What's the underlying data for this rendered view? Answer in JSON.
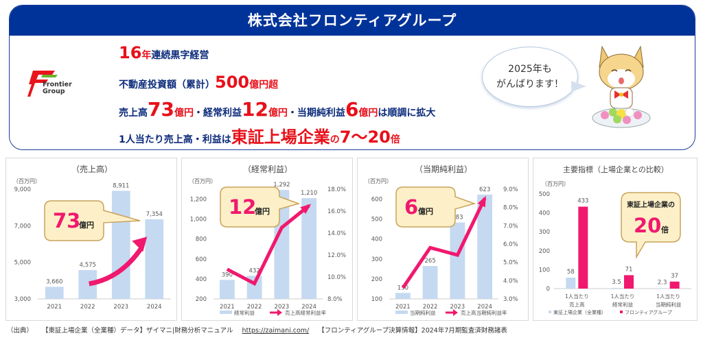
{
  "header": {
    "title": "株式会社フロンティアグループ",
    "logo_text_line1": "Frontier",
    "logo_text_line2": "Group"
  },
  "highlights": [
    {
      "parts": [
        {
          "t": "16",
          "c": "red big"
        },
        {
          "t": "年",
          "c": "red"
        },
        {
          "t": "連続黒字経営",
          "c": ""
        }
      ]
    },
    {
      "parts": [
        {
          "t": "不動産投資額（累計）",
          "c": ""
        },
        {
          "t": "500",
          "c": "red big"
        },
        {
          "t": "億円超",
          "c": "red"
        }
      ]
    },
    {
      "parts": [
        {
          "t": "売上高",
          "c": ""
        },
        {
          "t": "73",
          "c": "red bigger"
        },
        {
          "t": "億円",
          "c": "red"
        },
        {
          "t": "・経常利益",
          "c": ""
        },
        {
          "t": "12",
          "c": "red bigger"
        },
        {
          "t": "億円",
          "c": "red"
        },
        {
          "t": "・当期純利益",
          "c": ""
        },
        {
          "t": "6",
          "c": "red bigger"
        },
        {
          "t": "億円",
          "c": "red"
        },
        {
          "t": "は順調に拡大",
          "c": ""
        }
      ]
    },
    {
      "parts": [
        {
          "t": "1人当たり売上高・利益は",
          "c": ""
        },
        {
          "t": "東証上場企業",
          "c": "red big"
        },
        {
          "t": "の",
          "c": "red"
        },
        {
          "t": "7～20",
          "c": "red big"
        },
        {
          "t": "倍",
          "c": "red"
        }
      ]
    }
  ],
  "speech_bubble": {
    "line1": "2025年も",
    "line2": "がんばります！"
  },
  "colors": {
    "brand_blue": "#003399",
    "accent_red": "#e8101a",
    "bar_blue": "#c5d9f1",
    "line_pink": "#f0196e",
    "callout_fill": "#fdf0c8",
    "callout_border": "#c9a25a"
  },
  "chart_data": [
    {
      "type": "bar",
      "title": "（売上高）",
      "unit_label": "（百万円）",
      "categories": [
        "2021",
        "2022",
        "2023",
        "2024"
      ],
      "values": [
        3660,
        4575,
        8911,
        7354
      ],
      "value_labels": [
        "3,660",
        "4,575",
        "8,911",
        "7,354"
      ],
      "ylim": [
        3000,
        9000
      ],
      "yticks": [
        3000,
        5000,
        7000,
        9000
      ],
      "ytick_labels": [
        "3,000",
        "5,000",
        "7,000",
        "9,000"
      ],
      "callout": {
        "number": "73",
        "unit": "億円"
      },
      "has_trend_arrow": true
    },
    {
      "type": "bar+line",
      "title": "（経常利益）",
      "unit_label": "（百万円）",
      "categories": [
        "2021",
        "2022",
        "2023",
        "2024"
      ],
      "series": [
        {
          "name": "経常利益",
          "type": "bar",
          "values": [
            390,
            432,
            1292,
            1210
          ],
          "value_labels": [
            "390",
            "432",
            "1,292",
            "1,210"
          ]
        },
        {
          "name": "売上高経常利益率",
          "type": "line",
          "axis": "right",
          "values": [
            10.7,
            9.4,
            14.5,
            16.5
          ]
        }
      ],
      "ylim": [
        200,
        1300
      ],
      "yticks": [
        200,
        400,
        600,
        800,
        1000,
        1200
      ],
      "ytick_labels": [
        "200",
        "400",
        "600",
        "800",
        "1,000",
        "1,200"
      ],
      "y2lim": [
        8.0,
        18.0
      ],
      "y2ticks": [
        8,
        10,
        12,
        14,
        16,
        18
      ],
      "y2tick_labels": [
        "8.0%",
        "10.0%",
        "12.0%",
        "14.0%",
        "16.0%",
        "18.0%"
      ],
      "callout": {
        "number": "12",
        "unit": "億円"
      },
      "legend": [
        "経常利益",
        "売上高経常利益率"
      ]
    },
    {
      "type": "bar+line",
      "title": "（当期純利益）",
      "unit_label": "（百万円）",
      "categories": [
        "2021",
        "2022",
        "2023",
        "2024"
      ],
      "series": [
        {
          "name": "当期純利益",
          "type": "bar",
          "values": [
            130,
            265,
            483,
            623
          ],
          "value_labels": [
            "130",
            "265",
            "483",
            "623"
          ]
        },
        {
          "name": "売上高当期純利益率",
          "type": "line",
          "axis": "right",
          "values": [
            3.6,
            5.8,
            5.4,
            8.5
          ]
        }
      ],
      "ylim": [
        100,
        650
      ],
      "yticks": [
        100,
        200,
        300,
        400,
        500,
        600
      ],
      "ytick_labels": [
        "100",
        "200",
        "300",
        "400",
        "500",
        "600"
      ],
      "y2lim": [
        3.0,
        9.0
      ],
      "y2ticks": [
        3,
        4,
        5,
        6,
        7,
        8,
        9
      ],
      "y2tick_labels": [
        "3.0%",
        "4.0%",
        "5.0%",
        "6.0%",
        "7.0%",
        "8.0%",
        "9.0%"
      ],
      "callout": {
        "number": "6",
        "unit": "億円"
      },
      "legend": [
        "当期純利益",
        "売上高当期純利益率"
      ]
    },
    {
      "type": "grouped-bar",
      "title": "主要指標（上場企業との比較）",
      "unit_label": "（百万円）",
      "categories": [
        "1人当たり\n売上高",
        "1人当たり\n経常利益",
        "1人当たり\n当期純利益"
      ],
      "series": [
        {
          "name": "東証上場企業（全業種）",
          "values": [
            58,
            3.5,
            2.3
          ],
          "value_labels": [
            "58",
            "3.5",
            "2.3"
          ]
        },
        {
          "name": "フロンティアグループ",
          "values": [
            433,
            71,
            37
          ],
          "value_labels": [
            "433",
            "71",
            "37"
          ]
        }
      ],
      "ylim": [
        0,
        500
      ],
      "yticks": [
        0,
        100,
        200,
        300,
        400,
        500
      ],
      "ytick_labels": [
        "0",
        "100",
        "200",
        "300",
        "400",
        "500"
      ],
      "callout": {
        "line1": "東証上場企業の",
        "number": "20",
        "unit": "倍"
      },
      "legend": [
        "東証上場企業（全業種）",
        "フロンティアグループ"
      ]
    }
  ],
  "footer": {
    "source_label": "（出典）",
    "source1": "【東証上場企業（全業種）データ】ザイマニ|財務分析マニュアル",
    "link": "https://zaimani.com/",
    "source2": "【フロンティアグループ決算情報】2024年7月期監査済財務諸表"
  }
}
